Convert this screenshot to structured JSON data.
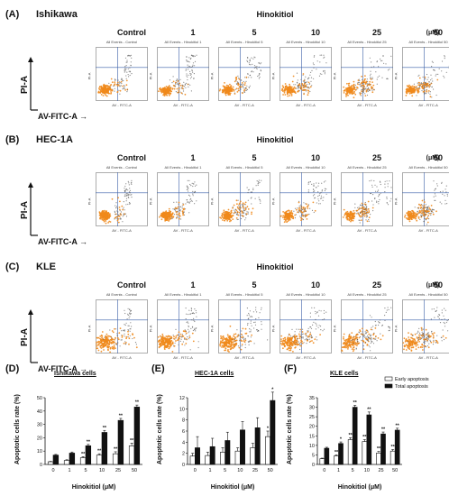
{
  "panels": [
    {
      "tag": "(A)",
      "line": "Ishikawa",
      "suffix": ""
    },
    {
      "tag": "(B)",
      "line": "HEC-1A",
      "suffix": ""
    },
    {
      "tag": "(C)",
      "line": "KLE",
      "suffix": ""
    }
  ],
  "treatment_label": "Hinokitiol",
  "unit": "(μM)",
  "columns": [
    "Control",
    "1",
    "5",
    "10",
    "25",
    "50"
  ],
  "plot_titles": [
    "All Events - Control",
    "All Events - Hinokitiol 1",
    "All Events - Hinokitiol 5",
    "All Events - Hinokitiol 10",
    "All Events - Hinokitiol 25",
    "All Events - Hinokitiol 50"
  ],
  "flow_axes": {
    "y": "PI-A",
    "x": "AV-FITC-A",
    "small_y": "PI-A",
    "small_x": "AV - FITC-A"
  },
  "bar_panels": [
    {
      "tag": "(D)",
      "title": "Ishikawa cells",
      "ylim": [
        0,
        50
      ],
      "ticks": [
        0,
        10,
        20,
        30,
        40,
        50
      ]
    },
    {
      "tag": "(E)",
      "title": "HEC-1A cells",
      "ylim": [
        0,
        12
      ],
      "ticks": [
        0,
        2,
        4,
        6,
        8,
        10,
        12
      ]
    },
    {
      "tag": "(F)",
      "title": "KLE cells",
      "ylim": [
        0,
        35
      ],
      "ticks": [
        0,
        5,
        10,
        15,
        20,
        25,
        30,
        35
      ]
    }
  ],
  "bar_xlabel": "Hinokitiol (μM)",
  "bar_ylabel": "Apoptotic cells rate (%)",
  "legend": {
    "early": "Early apoptosis",
    "total": "Total apoptosis"
  },
  "sig_mark": "**",
  "sig_mark_single": "*",
  "colors": {
    "dots_core": "#f08a1c",
    "dots_edge": "#555555",
    "early": "#ffffff",
    "total": "#111111"
  },
  "chart_data": [
    {
      "type": "bar",
      "title": "Ishikawa cells",
      "categories": [
        "0",
        "1",
        "5",
        "10",
        "25",
        "50"
      ],
      "xlabel": "Hinokitiol (μM)",
      "ylabel": "Apoptotic cells rate (%)",
      "ylim": [
        0,
        50
      ],
      "series": [
        {
          "name": "Early apoptosis",
          "values": [
            2,
            3,
            5,
            7,
            8,
            14
          ],
          "errors": [
            0.3,
            0.5,
            0.8,
            1,
            1.5,
            2
          ],
          "sig": [
            "",
            "",
            "**",
            "**",
            "**",
            "**"
          ]
        },
        {
          "name": "Total apoptosis",
          "values": [
            7,
            8.5,
            14,
            24,
            33,
            43
          ],
          "errors": [
            0.5,
            0.8,
            1,
            1.5,
            1.5,
            1.5
          ],
          "sig": [
            "",
            "",
            "**",
            "**",
            "**",
            "**"
          ]
        }
      ]
    },
    {
      "type": "bar",
      "title": "HEC-1A cells",
      "categories": [
        "0",
        "1",
        "5",
        "10",
        "25",
        "50"
      ],
      "xlabel": "Hinokitiol (μM)",
      "ylabel": "Apoptotic cells rate (%)",
      "ylim": [
        0,
        12
      ],
      "series": [
        {
          "name": "Early apoptosis",
          "values": [
            1.5,
            1.6,
            2.2,
            2.4,
            3,
            5
          ],
          "errors": [
            0.5,
            0.6,
            0.8,
            0.6,
            0.8,
            1
          ],
          "sig": [
            "",
            "",
            "",
            "",
            "",
            "*"
          ]
        },
        {
          "name": "Total apoptosis",
          "values": [
            3,
            3.2,
            4.3,
            6.2,
            6.6,
            11.5
          ],
          "errors": [
            2,
            1.5,
            1.5,
            1.5,
            1.8,
            1.5
          ],
          "sig": [
            "",
            "",
            "",
            "",
            "",
            "*"
          ]
        }
      ]
    },
    {
      "type": "bar",
      "title": "KLE cells",
      "categories": [
        "0",
        "1",
        "5",
        "10",
        "25",
        "50"
      ],
      "xlabel": "Hinokitiol (μM)",
      "ylabel": "Apoptotic cells rate (%)",
      "ylim": [
        0,
        35
      ],
      "series": [
        {
          "name": "Early apoptosis",
          "values": [
            3,
            4.5,
            13,
            12,
            6,
            7
          ],
          "errors": [
            0.3,
            0.5,
            1,
            1,
            0.8,
            0.8
          ],
          "sig": [
            "",
            "**",
            "**",
            "**",
            "**",
            "**"
          ]
        },
        {
          "name": "Total apoptosis",
          "values": [
            8.5,
            11,
            30,
            26,
            16,
            18
          ],
          "errors": [
            0.5,
            0.8,
            1,
            1.5,
            1,
            1
          ],
          "sig": [
            "",
            "*",
            "**",
            "**",
            "**",
            "**"
          ]
        }
      ]
    }
  ]
}
